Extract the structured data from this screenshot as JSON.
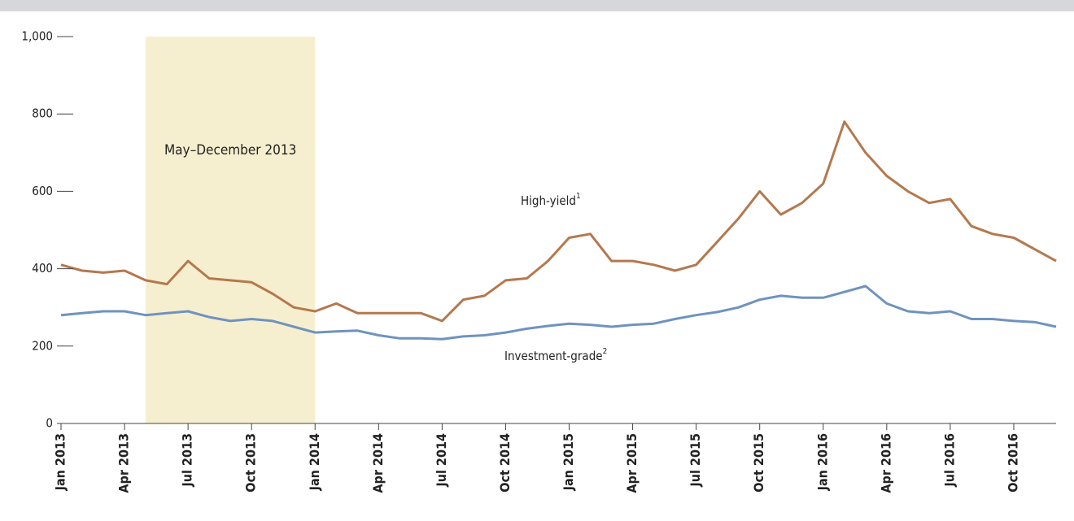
{
  "chart_data": {
    "type": "line",
    "x": [
      "2013-01",
      "2013-02",
      "2013-03",
      "2013-04",
      "2013-05",
      "2013-06",
      "2013-07",
      "2013-08",
      "2013-09",
      "2013-10",
      "2013-11",
      "2013-12",
      "2014-01",
      "2014-02",
      "2014-03",
      "2014-04",
      "2014-05",
      "2014-06",
      "2014-07",
      "2014-08",
      "2014-09",
      "2014-10",
      "2014-11",
      "2014-12",
      "2015-01",
      "2015-02",
      "2015-03",
      "2015-04",
      "2015-05",
      "2015-06",
      "2015-07",
      "2015-08",
      "2015-09",
      "2015-10",
      "2015-11",
      "2015-12",
      "2016-01",
      "2016-02",
      "2016-03",
      "2016-04",
      "2016-05",
      "2016-06",
      "2016-07",
      "2016-08",
      "2016-09",
      "2016-10",
      "2016-11",
      "2016-12"
    ],
    "series": [
      {
        "name": "High-yield",
        "footnote": "1",
        "color": "#b5784e",
        "values": [
          410,
          395,
          390,
          395,
          370,
          360,
          420,
          375,
          370,
          365,
          335,
          300,
          290,
          310,
          285,
          285,
          285,
          285,
          265,
          320,
          330,
          370,
          375,
          420,
          480,
          490,
          420,
          420,
          410,
          395,
          410,
          470,
          530,
          600,
          540,
          570,
          620,
          780,
          700,
          640,
          600,
          570,
          580,
          510,
          490,
          480,
          450,
          420
        ]
      },
      {
        "name": "Investment-grade",
        "footnote": "2",
        "color": "#6f93bf",
        "values": [
          280,
          285,
          290,
          290,
          280,
          285,
          290,
          275,
          265,
          270,
          265,
          250,
          235,
          238,
          240,
          228,
          220,
          220,
          218,
          225,
          228,
          235,
          245,
          252,
          258,
          255,
          250,
          255,
          258,
          270,
          280,
          288,
          300,
          320,
          330,
          325,
          325,
          340,
          355,
          310,
          290,
          285,
          290,
          270,
          270,
          265,
          262,
          250
        ]
      }
    ],
    "xlim": [
      "2013-01",
      "2016-12"
    ],
    "xticks": [
      {
        "value": "2013-01",
        "label": "Jan 2013"
      },
      {
        "value": "2013-04",
        "label": "Apr 2013"
      },
      {
        "value": "2013-07",
        "label": "Jul 2013"
      },
      {
        "value": "2013-10",
        "label": "Oct 2013"
      },
      {
        "value": "2014-01",
        "label": "Jan 2014"
      },
      {
        "value": "2014-04",
        "label": "Apr 2014"
      },
      {
        "value": "2014-07",
        "label": "Jul 2014"
      },
      {
        "value": "2014-10",
        "label": "Oct 2014"
      },
      {
        "value": "2015-01",
        "label": "Jan 2015"
      },
      {
        "value": "2015-04",
        "label": "Apr 2015"
      },
      {
        "value": "2015-07",
        "label": "Jul 2015"
      },
      {
        "value": "2015-10",
        "label": "Oct 2015"
      },
      {
        "value": "2016-01",
        "label": "Jan 2016"
      },
      {
        "value": "2016-04",
        "label": "Apr 2016"
      },
      {
        "value": "2016-07",
        "label": "Jul 2016"
      },
      {
        "value": "2016-10",
        "label": "Oct 2016"
      }
    ],
    "ylim": [
      0,
      1000
    ],
    "yticks": [
      0,
      200,
      400,
      600,
      {
        "value": 1000,
        "label": "1,000"
      },
      800
    ],
    "shaded_period": {
      "start": "2013-05",
      "end": "2014-01",
      "color": "#f6efcf",
      "label": "May–December 2013"
    },
    "grid": false
  }
}
